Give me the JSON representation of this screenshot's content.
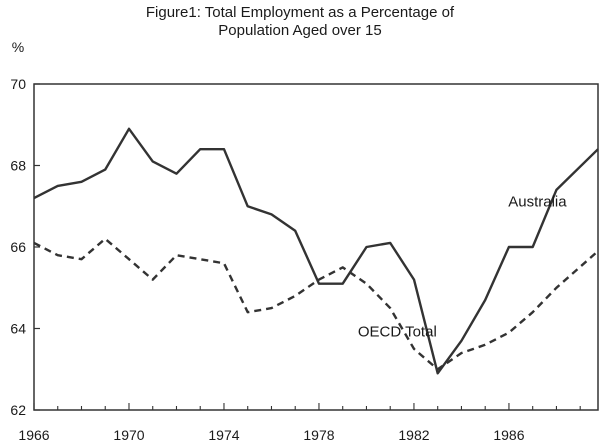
{
  "chart_data": {
    "type": "line",
    "title_lines": [
      "Figure1: Total Employment as a Percentage of",
      "Population Aged over 15"
    ],
    "ylabel": "%",
    "xlabel": "",
    "ylim": [
      62,
      70
    ],
    "xlim": [
      1966,
      1989.75
    ],
    "y_ticks": [
      62,
      64,
      66,
      68,
      70
    ],
    "x_ticks": [
      1966,
      1970,
      1974,
      1978,
      1982,
      1986
    ],
    "grid": false,
    "series": [
      {
        "name": "Australia",
        "style": "solid",
        "color": "#333333",
        "x": [
          1966,
          1967,
          1968,
          1969,
          1970,
          1971,
          1972,
          1973,
          1974,
          1975,
          1976,
          1977,
          1978,
          1979,
          1980,
          1981,
          1982,
          1983,
          1984,
          1985,
          1986,
          1987,
          1988,
          1989.75
        ],
        "y": [
          67.2,
          67.5,
          67.6,
          67.9,
          68.9,
          68.1,
          67.8,
          68.4,
          68.4,
          67.0,
          66.8,
          66.4,
          65.1,
          65.1,
          66.0,
          66.1,
          65.2,
          62.9,
          63.7,
          64.7,
          66.0,
          66.0,
          67.4,
          68.4
        ]
      },
      {
        "name": "OECD Total",
        "style": "dashed",
        "color": "#333333",
        "x": [
          1966,
          1967,
          1968,
          1969,
          1970,
          1971,
          1972,
          1973,
          1974,
          1975,
          1976,
          1977,
          1978,
          1979,
          1980,
          1981,
          1982,
          1983,
          1984,
          1985,
          1986,
          1987,
          1988,
          1989.75
        ],
        "y": [
          66.1,
          65.8,
          65.7,
          66.2,
          65.7,
          65.2,
          65.8,
          65.7,
          65.6,
          64.4,
          64.5,
          64.8,
          65.2,
          65.5,
          65.1,
          64.5,
          63.5,
          63.0,
          63.4,
          63.6,
          63.9,
          64.4,
          65.0,
          65.9
        ]
      }
    ],
    "annotations": [
      {
        "text": "Australia",
        "series": "Australia",
        "anchor_x": 1987.2,
        "anchor_y": 67.0
      },
      {
        "text": "OECD Total",
        "series": "OECD Total",
        "anchor_x": 1981.3,
        "anchor_y": 63.8
      }
    ]
  }
}
